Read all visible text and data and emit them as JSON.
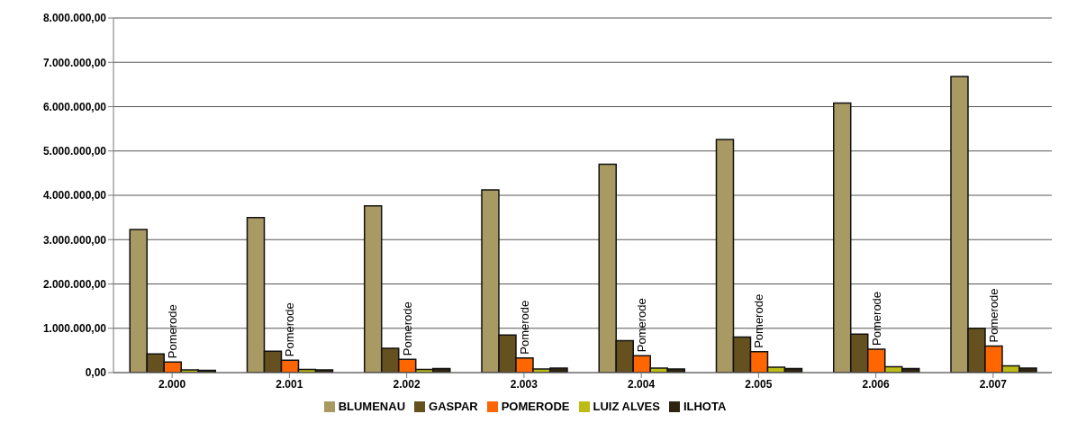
{
  "chart_data": {
    "type": "bar",
    "categories": [
      "2.000",
      "2.001",
      "2.002",
      "2.003",
      "2.004",
      "2.005",
      "2.006",
      "2.007"
    ],
    "series": [
      {
        "name": "BLUMENAU",
        "color": "#a89a62",
        "values": [
          3230000,
          3500000,
          3760000,
          4120000,
          4700000,
          5260000,
          6080000,
          6680000
        ]
      },
      {
        "name": "GASPAR",
        "color": "#65501f",
        "values": [
          420000,
          480000,
          550000,
          850000,
          720000,
          800000,
          870000,
          1000000
        ]
      },
      {
        "name": "POMERODE",
        "color": "#ff6600",
        "values": [
          240000,
          280000,
          300000,
          330000,
          380000,
          470000,
          530000,
          600000
        ]
      },
      {
        "name": "LUIZ ALVES",
        "color": "#bcbc14",
        "values": [
          60000,
          70000,
          70000,
          80000,
          100000,
          120000,
          130000,
          150000
        ]
      },
      {
        "name": "ILHOTA",
        "color": "#2e2410",
        "values": [
          50000,
          60000,
          90000,
          100000,
          80000,
          90000,
          90000,
          100000
        ]
      }
    ],
    "ylim": [
      0,
      8000000
    ],
    "yticks": [
      {
        "value": 0,
        "label": "0,00"
      },
      {
        "value": 1000000,
        "label": "1.000.000,00"
      },
      {
        "value": 2000000,
        "label": "2.000.000,00"
      },
      {
        "value": 3000000,
        "label": "3.000.000,00"
      },
      {
        "value": 4000000,
        "label": "4.000.000,00"
      },
      {
        "value": 5000000,
        "label": "5.000.000,00"
      },
      {
        "value": 6000000,
        "label": "6.000.000,00"
      },
      {
        "value": 7000000,
        "label": "7.000.000,00"
      },
      {
        "value": 8000000,
        "label": "8.000.000,00"
      }
    ],
    "grid": "y",
    "legend": "bottom",
    "annotations": [
      {
        "text": "Pomerode",
        "x": "2.000",
        "y": 240000
      },
      {
        "text": "Pomerode",
        "x": "2.001",
        "y": 280000
      },
      {
        "text": "Pomerode",
        "x": "2.002",
        "y": 300000
      },
      {
        "text": "Pomerode",
        "x": "2.003",
        "y": 330000
      },
      {
        "text": "Pomerode",
        "x": "2.004",
        "y": 380000
      },
      {
        "text": "Pomerode",
        "x": "2.005",
        "y": 470000
      },
      {
        "text": "Pomerode",
        "x": "2.006",
        "y": 530000
      },
      {
        "text": "Pomerode",
        "x": "2.007",
        "y": 600000
      }
    ]
  }
}
